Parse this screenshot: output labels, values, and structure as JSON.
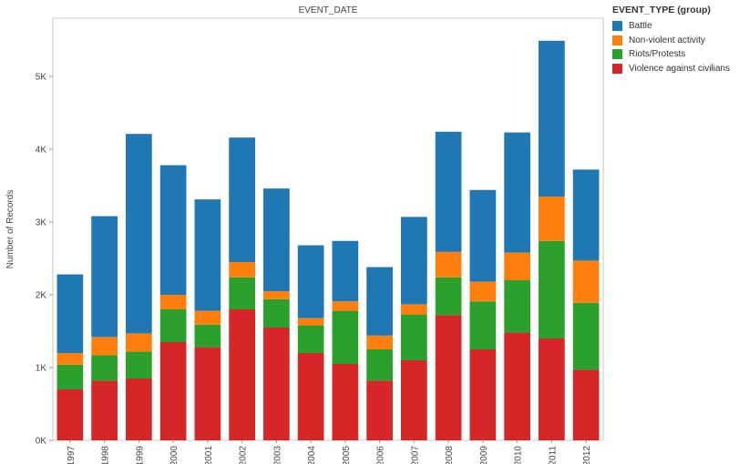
{
  "chart_data": {
    "type": "bar",
    "stacked": true,
    "title": "EVENT_DATE",
    "xlabel": "",
    "ylabel": "Number of Records",
    "ylim": [
      0,
      5800
    ],
    "yticks": [
      0,
      1000,
      2000,
      3000,
      4000,
      5000
    ],
    "ytick_labels": [
      "0K",
      "1K",
      "2K",
      "3K",
      "4K",
      "5K"
    ],
    "grid": false,
    "legend_position": "top-right",
    "legend_title": "EVENT_TYPE (group)",
    "categories": [
      "1997",
      "1998",
      "1999",
      "2000",
      "2001",
      "2002",
      "2003",
      "2004",
      "2005",
      "2006",
      "2007",
      "2008",
      "2009",
      "2010",
      "2011",
      "2012"
    ],
    "series": [
      {
        "name": "Violence against civilians",
        "color": "#d62728",
        "values": [
          700,
          820,
          850,
          1350,
          1280,
          1800,
          1550,
          1200,
          1050,
          820,
          1100,
          1720,
          1250,
          1480,
          1400,
          970
        ]
      },
      {
        "name": "Riots/Protests",
        "color": "#2ca02c",
        "values": [
          340,
          350,
          370,
          450,
          310,
          440,
          390,
          380,
          730,
          430,
          630,
          520,
          660,
          720,
          1340,
          920
        ]
      },
      {
        "name": "Non-violent activity",
        "color": "#ff7f0e",
        "values": [
          160,
          250,
          250,
          200,
          190,
          210,
          110,
          100,
          130,
          190,
          140,
          350,
          270,
          380,
          610,
          580
        ]
      },
      {
        "name": "Battle",
        "color": "#1f77b4",
        "values": [
          1080,
          1660,
          2740,
          1780,
          1530,
          1710,
          1410,
          1000,
          830,
          940,
          1200,
          1650,
          1260,
          1650,
          2140,
          1250
        ]
      }
    ]
  }
}
